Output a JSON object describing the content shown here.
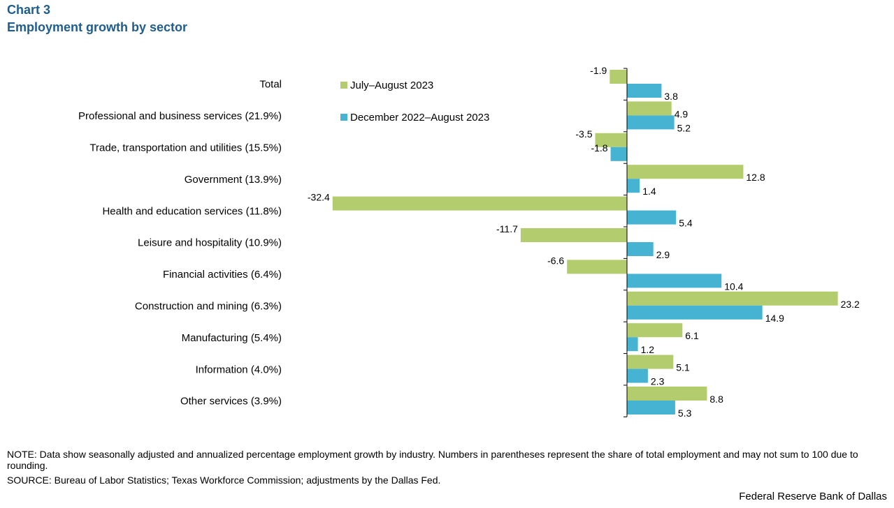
{
  "header": {
    "chart_number": "Chart 3",
    "title": "Employment  growth by sector"
  },
  "footer": {
    "note": "NOTE: Data show seasonally adjusted and annualized percentage employment growth by industry. Numbers in parentheses represent the share of total employment and may not sum to 100 due to rounding.",
    "source": "SOURCE: Bureau of Labor Statistics; Texas Workforce Commission; adjustments by the Dallas Fed.",
    "org": "Federal Reserve Bank of Dallas"
  },
  "chart_data": {
    "type": "bar",
    "orientation": "horizontal",
    "title": "Employment  growth by sector",
    "categories": [
      "Total",
      "Professional and business services (21.9%)",
      "Trade, transportation and utilities (15.5%)",
      "Government (13.9%)",
      "Health and education services (11.8%)",
      "Leisure and hospitality  (10.9%)",
      "Financial activities (6.4%)",
      "Construction and mining (6.3%)",
      "Manufacturing (5.4%)",
      "Information (4.0%)",
      "Other services (3.9%)"
    ],
    "series": [
      {
        "name": "July–August  2023",
        "color": "#b3cc6e",
        "values": [
          -1.9,
          4.9,
          -3.5,
          12.8,
          -32.4,
          -11.7,
          -6.6,
          23.2,
          6.1,
          5.1,
          8.8
        ],
        "labels": [
          "-1.9",
          "4.9",
          "-3.5",
          "12.8",
          "-32.4",
          "-11.7",
          "-6.6",
          "23.2",
          "6.1",
          "5.1",
          "8.8"
        ]
      },
      {
        "name": "December  2022–August  2023",
        "color": "#45b3d1",
        "values": [
          3.8,
          5.2,
          -1.8,
          1.4,
          5.4,
          2.9,
          10.4,
          14.9,
          1.2,
          2.3,
          5.3
        ],
        "labels": [
          "3.8",
          "5.2",
          "-1.8",
          "1.4",
          "5.4",
          "2.9",
          "10.4",
          "14.9",
          "1.2",
          "2.3",
          "5.3"
        ]
      }
    ],
    "xlim": [
      -32.4,
      23.2
    ],
    "legend_position": "top-center",
    "grid": false
  }
}
